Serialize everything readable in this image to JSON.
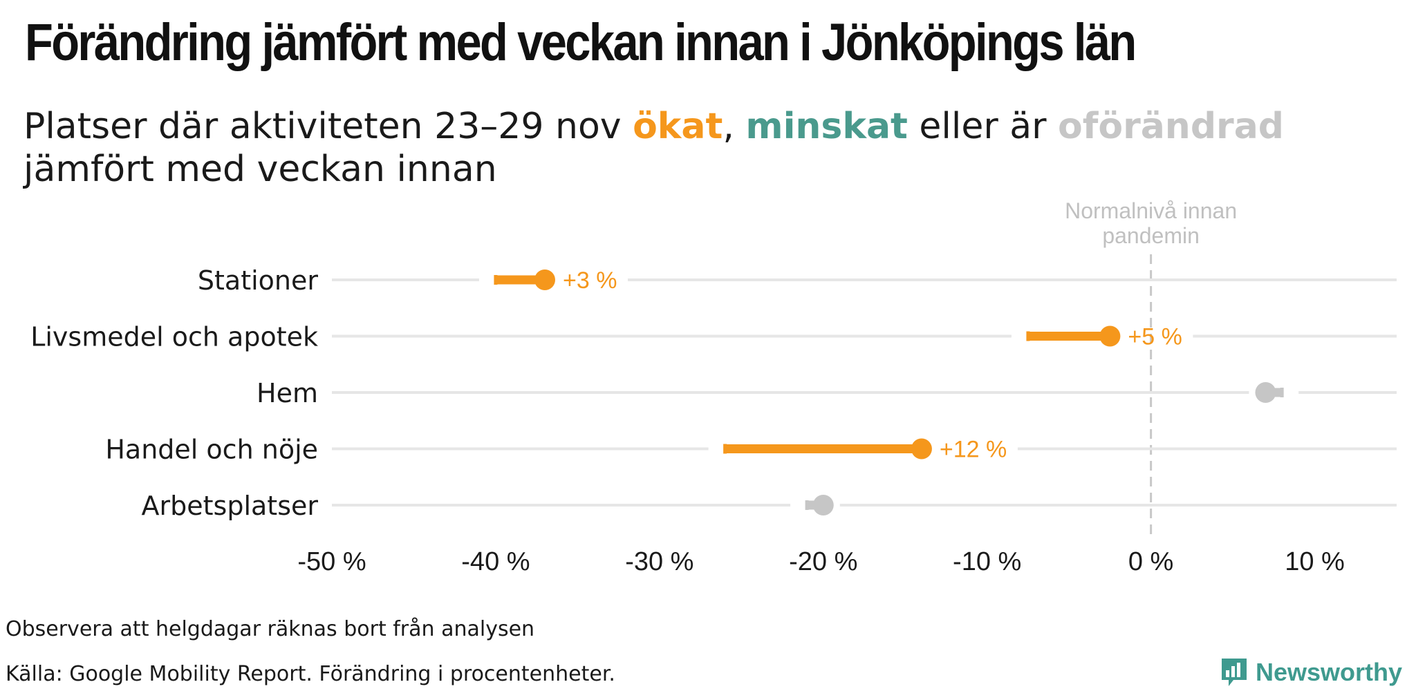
{
  "header": {
    "title": "Förändring jämfört med veckan innan i Jönköpings län",
    "subtitle_part1": "Platser där aktiviteten 23–29 nov ",
    "subtitle_up": "ökat",
    "subtitle_sep": ", ",
    "subtitle_down": "minskat",
    "subtitle_mid": " eller är ",
    "subtitle_same": "oförändrad",
    "subtitle_line2": "jämfört med veckan innan"
  },
  "footer": {
    "note": "Observera att helgdagar räknas bort från analysen",
    "source": "Källa: Google Mobility Report. Förändring i procentenheter.",
    "brand": "Newsworthy"
  },
  "colors": {
    "increase": "#f5971c",
    "decrease": "#4a9a8d",
    "unchanged": "#c6c6c6",
    "gridline": "#e6e6e6",
    "reference": "#c8c8c8"
  },
  "chart_data": {
    "type": "dumbbell",
    "xlim": [
      -50,
      15
    ],
    "xticks": [
      -50,
      -40,
      -30,
      -20,
      -10,
      0,
      10
    ],
    "xtick_labels": [
      "-50 %",
      "-40 %",
      "-30 %",
      "-20 %",
      "-10 %",
      "0 %",
      "10 %"
    ],
    "reference_line": {
      "x": 0,
      "label_line1": "Normalnivå innan",
      "label_line2": "pandemin"
    },
    "rows": [
      {
        "category": "Stationer",
        "previous": -40,
        "current": -37,
        "change_label": "+3 %",
        "status": "increase"
      },
      {
        "category": "Livsmedel och apotek",
        "previous": -7.5,
        "current": -2.5,
        "change_label": "+5 %",
        "status": "increase"
      },
      {
        "category": "Hem",
        "previous": 8,
        "current": 7,
        "change_label": "",
        "status": "unchanged"
      },
      {
        "category": "Handel och nöje",
        "previous": -26,
        "current": -14,
        "change_label": "+12 %",
        "status": "increase"
      },
      {
        "category": "Arbetsplatser",
        "previous": -21,
        "current": -20,
        "change_label": "",
        "status": "unchanged"
      }
    ]
  }
}
